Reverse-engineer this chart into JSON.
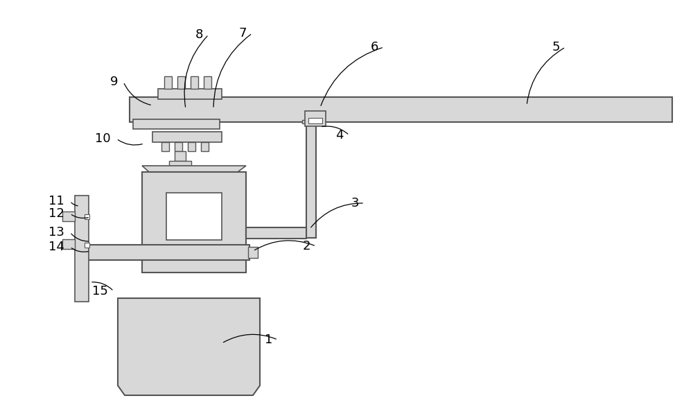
{
  "bg_color": "#ffffff",
  "line_color": "#555555",
  "fill_color": "#d8d8d8",
  "white": "#ffffff",
  "figsize": [
    10.0,
    5.97
  ],
  "dpi": 100,
  "labels_data": [
    [
      "1",
      395,
      490,
      320,
      495
    ],
    [
      "2",
      450,
      355,
      365,
      362
    ],
    [
      "3",
      520,
      293,
      447,
      330
    ],
    [
      "4",
      498,
      195,
      462,
      183
    ],
    [
      "5",
      810,
      68,
      760,
      152
    ],
    [
      "6",
      548,
      68,
      462,
      155
    ],
    [
      "7",
      358,
      48,
      308,
      157
    ],
    [
      "8",
      295,
      50,
      268,
      157
    ],
    [
      "9",
      172,
      118,
      220,
      152
    ],
    [
      "10",
      162,
      200,
      208,
      207
    ],
    [
      "11",
      95,
      290,
      115,
      297
    ],
    [
      "12",
      95,
      308,
      130,
      313
    ],
    [
      "13",
      95,
      335,
      130,
      348
    ],
    [
      "14",
      95,
      356,
      130,
      362
    ],
    [
      "15",
      158,
      420,
      130,
      407
    ]
  ]
}
